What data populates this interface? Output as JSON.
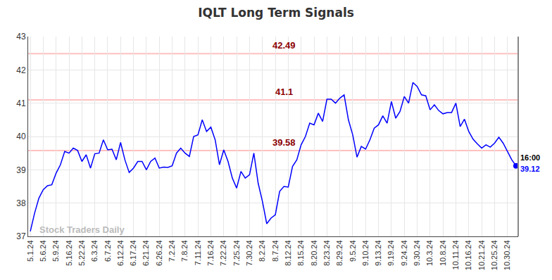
{
  "chart_data": {
    "type": "line",
    "title": "IQLT Long Term Signals",
    "watermark": "Stock Traders Daily",
    "color": "#0000ff",
    "grid": true,
    "categories": [
      "5.1.24",
      null,
      null,
      "5.6.24",
      null,
      null,
      "5.9.24",
      null,
      null,
      "5.16.24",
      null,
      null,
      "5.22.24",
      null,
      null,
      "6.3.24",
      null,
      null,
      "6.7.24",
      null,
      null,
      "6.12.24",
      null,
      null,
      "6.17.24",
      null,
      null,
      "6.21.24",
      null,
      null,
      "6.26.24",
      null,
      null,
      "7.2.24",
      null,
      null,
      "7.8.24",
      null,
      null,
      "7.11.24",
      null,
      null,
      "7.16.24",
      null,
      null,
      "7.22.24",
      null,
      null,
      "7.25.24",
      null,
      null,
      "7.30.24",
      null,
      null,
      "8.2.24",
      null,
      null,
      "8.7.24",
      null,
      null,
      "8.12.24",
      null,
      null,
      "8.15.24",
      null,
      null,
      "8.20.24",
      null,
      null,
      "8.23.24",
      null,
      null,
      "8.29.24",
      null,
      null,
      "9.5.24",
      null,
      null,
      "9.10.24",
      null,
      null,
      "9.13.24",
      null,
      null,
      "9.19.24",
      null,
      null,
      "9.24.24",
      null,
      null,
      "9.30.24",
      null,
      null,
      "10.3.24",
      null,
      null,
      "10.8.24",
      null,
      null,
      "10.11.24",
      null,
      null,
      "10.16.24",
      null,
      null,
      "10.21.24",
      null,
      null,
      "10.25.24",
      null,
      null,
      "10.30.24",
      null,
      null
    ],
    "values": [
      37.15,
      37.7,
      38.15,
      38.4,
      38.52,
      38.55,
      38.9,
      39.15,
      39.55,
      39.5,
      39.65,
      39.58,
      39.25,
      39.45,
      39.05,
      39.48,
      39.5,
      39.9,
      39.6,
      39.62,
      39.3,
      39.82,
      39.3,
      38.92,
      39.05,
      39.25,
      39.25,
      39.0,
      39.25,
      39.35,
      39.05,
      39.08,
      39.07,
      39.12,
      39.5,
      39.65,
      39.5,
      39.4,
      40.0,
      40.05,
      40.5,
      40.15,
      40.28,
      39.9,
      39.15,
      39.6,
      39.25,
      38.75,
      38.45,
      38.95,
      38.75,
      38.85,
      39.5,
      38.6,
      38.05,
      37.38,
      37.55,
      37.65,
      38.35,
      38.5,
      38.48,
      39.1,
      39.3,
      39.75,
      40.0,
      40.4,
      40.35,
      40.7,
      40.45,
      41.12,
      41.12,
      41.0,
      41.15,
      41.25,
      40.5,
      40.05,
      39.38,
      39.7,
      39.62,
      39.9,
      40.25,
      40.35,
      40.62,
      40.4,
      41.05,
      40.55,
      40.75,
      41.2,
      41.0,
      41.62,
      41.5,
      41.25,
      41.22,
      40.8,
      40.95,
      40.78,
      40.68,
      40.72,
      40.72,
      41.0,
      40.3,
      40.52,
      40.15,
      39.92,
      39.78,
      39.65,
      39.75,
      39.68,
      39.8,
      39.98,
      39.8,
      39.55,
      39.3,
      39.12
    ],
    "ylim": [
      37,
      43
    ],
    "yticks": [
      37,
      38,
      39,
      40,
      41,
      42,
      43
    ],
    "levels": [
      42.49,
      41.1,
      39.58
    ],
    "level_color": "#ffc0c0",
    "level_label_color": "#8b0000",
    "last_time": "16:00"
  }
}
